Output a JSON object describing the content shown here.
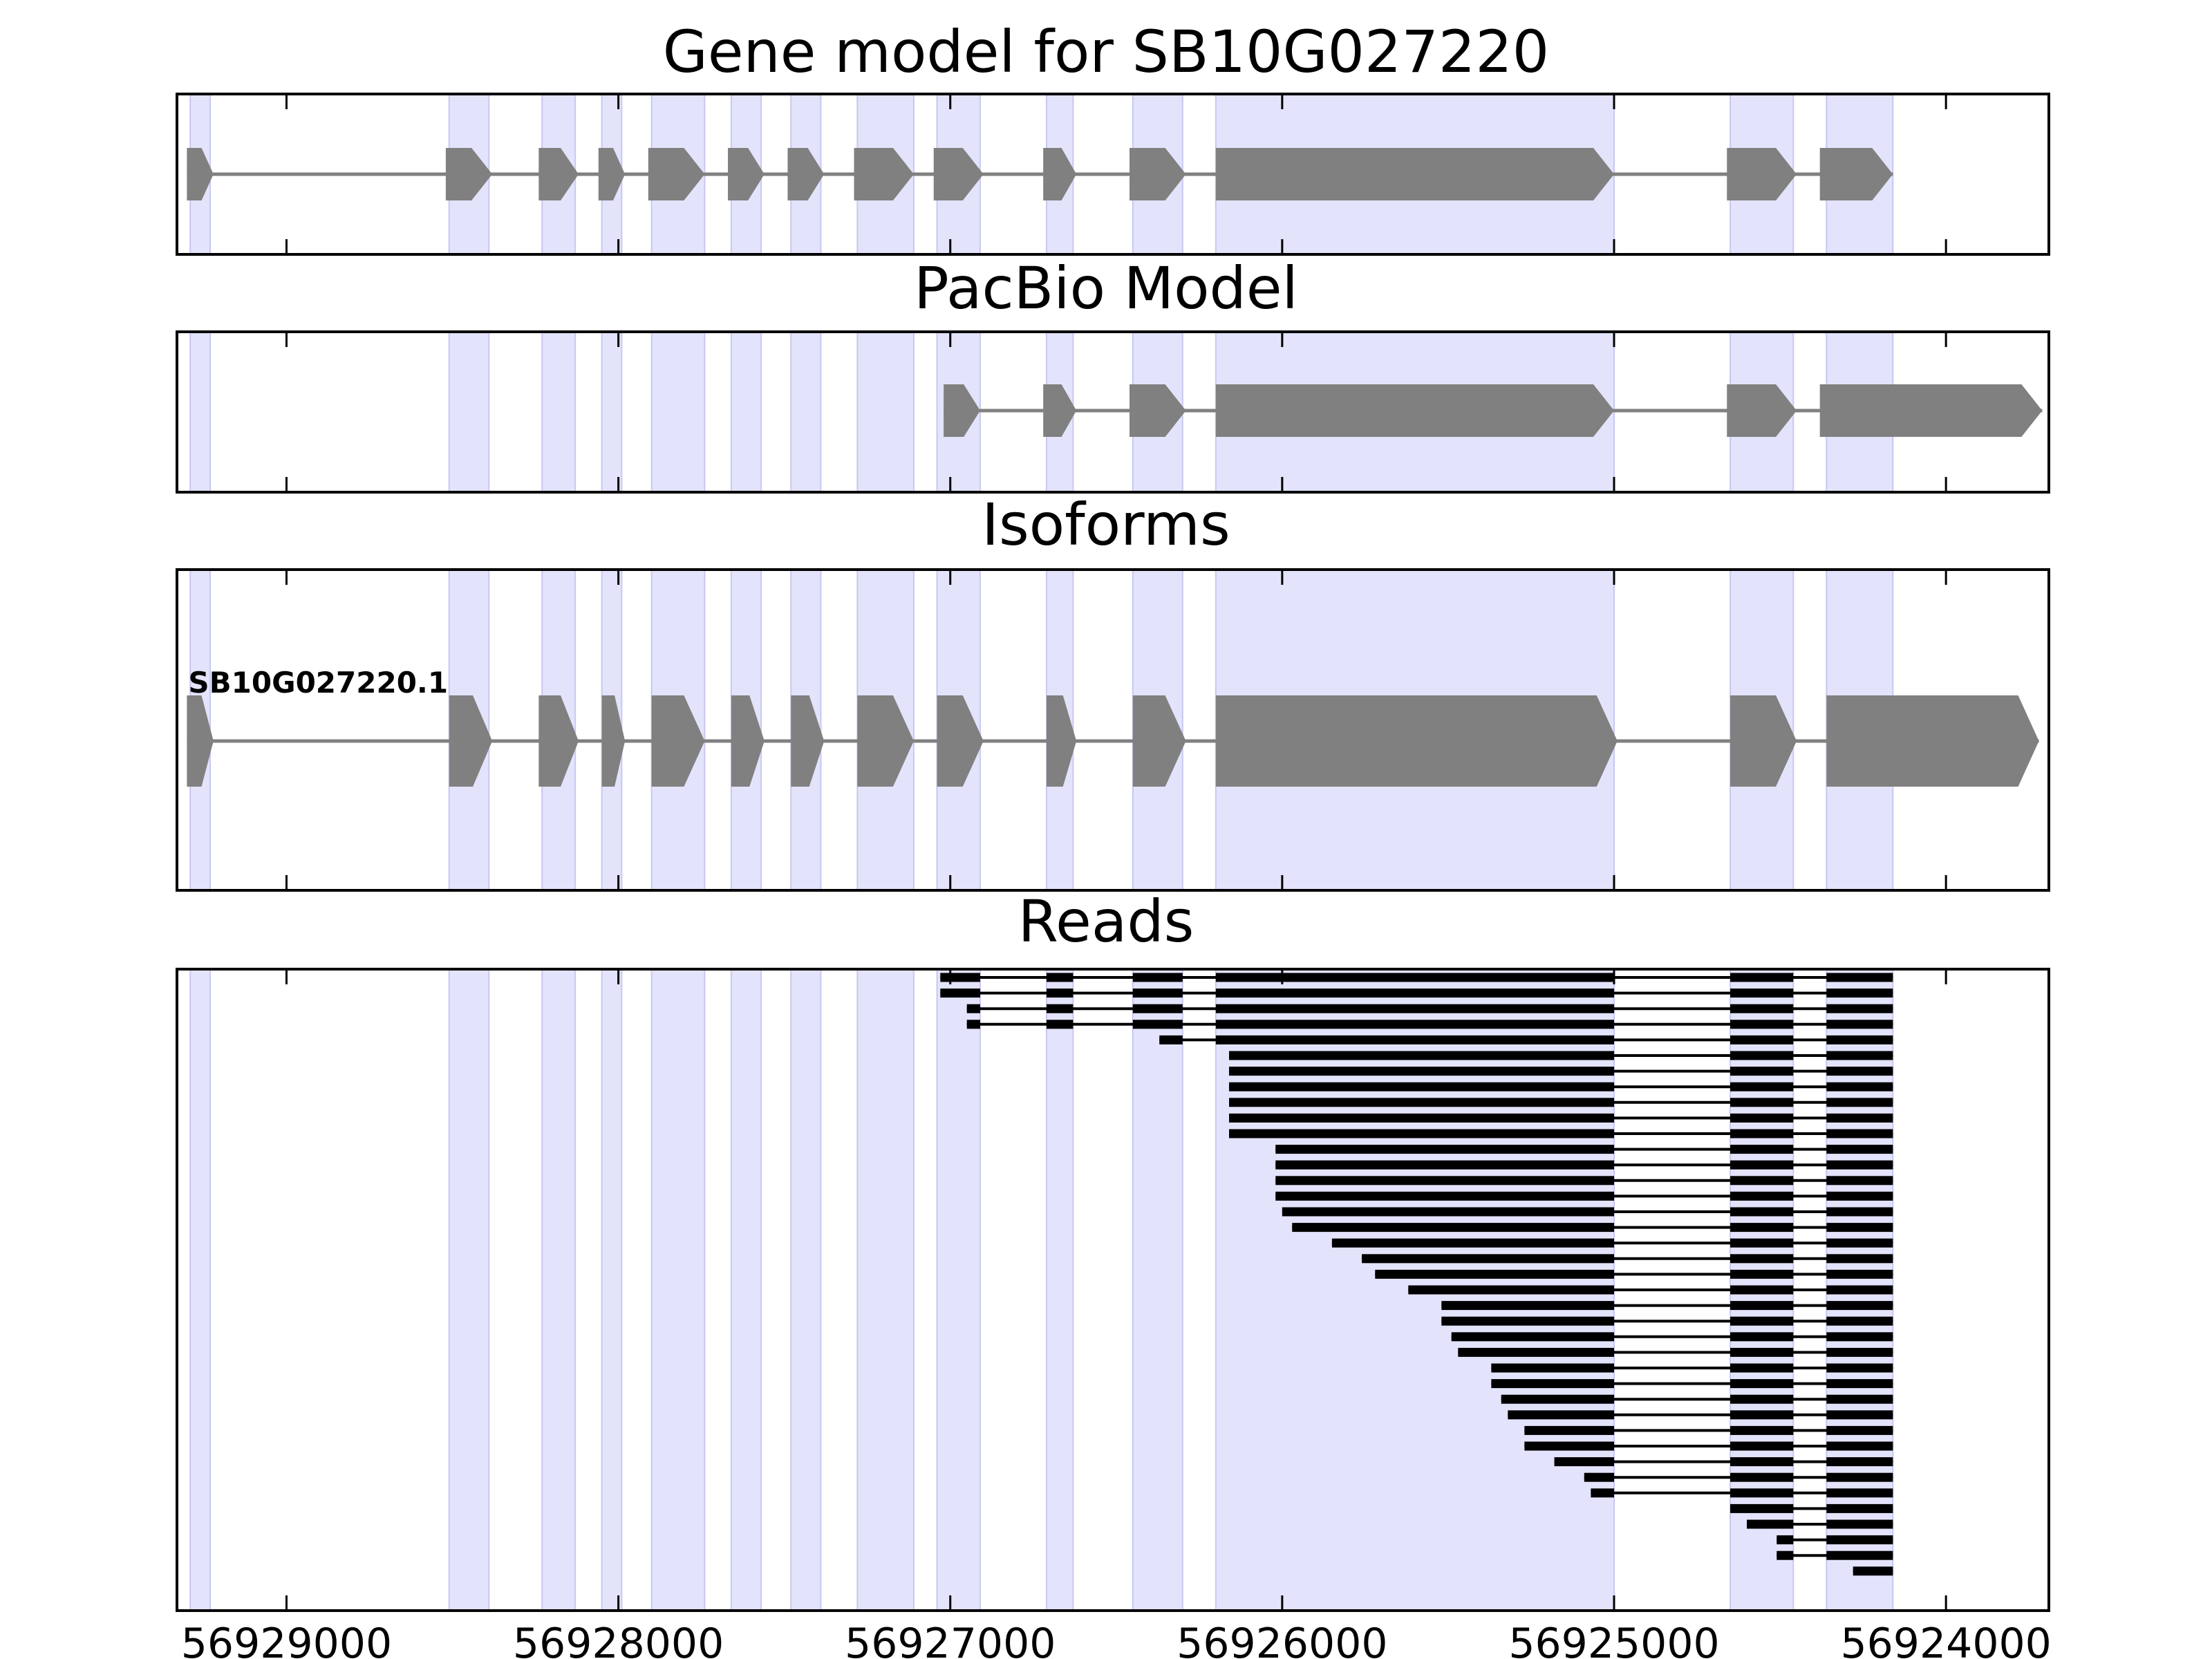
{
  "chart_data": {
    "type": "gene-model",
    "x_ticks": [
      56929000,
      56928000,
      56927000,
      56926000,
      56925000,
      56924000
    ],
    "x_tick_labels": [
      "56929000",
      "56928000",
      "56927000",
      "56926000",
      "56925000",
      "56924000"
    ],
    "xlim": [
      56929330,
      56923690
    ],
    "x_reversed": true,
    "strand": "-",
    "colors": {
      "exon_shade": "#e3e3fc",
      "exon_shade_edge": "#c8c8f0",
      "model_fill": "#808080",
      "intron_line": "#808080",
      "read_color": "#000000",
      "axes": "#000000"
    },
    "exon_regions": [
      [
        56929290,
        56929230
      ],
      [
        56928510,
        56928390
      ],
      [
        56928230,
        56928130
      ],
      [
        56928050,
        56927990
      ],
      [
        56927900,
        56927740
      ],
      [
        56927660,
        56927570
      ],
      [
        56927480,
        56927390
      ],
      [
        56927280,
        56927110
      ],
      [
        56927040,
        56926910
      ],
      [
        56926710,
        56926630
      ],
      [
        56926450,
        56926300
      ],
      [
        56926200,
        56925000
      ],
      [
        56924650,
        56924460
      ],
      [
        56924360,
        56924160
      ]
    ],
    "panels": [
      {
        "title": "Gene model for SB10G027220",
        "exons": [
          [
            56929300,
            56929220
          ],
          [
            56928520,
            56928380
          ],
          [
            56928240,
            56928120
          ],
          [
            56928060,
            56927980
          ],
          [
            56927910,
            56927740
          ],
          [
            56927670,
            56927560
          ],
          [
            56927490,
            56927380
          ],
          [
            56927290,
            56927110
          ],
          [
            56927050,
            56926900
          ],
          [
            56926720,
            56926620
          ],
          [
            56926460,
            56926290
          ],
          [
            56926200,
            56925000
          ],
          [
            56924660,
            56924450
          ],
          [
            56924380,
            56924160
          ]
        ]
      },
      {
        "title": "PacBio Model",
        "exons": [
          [
            56927020,
            56926910
          ],
          [
            56926720,
            56926620
          ],
          [
            56926460,
            56926290
          ],
          [
            56926200,
            56925000
          ],
          [
            56924660,
            56924450
          ],
          [
            56924380,
            56923710
          ]
        ]
      },
      {
        "title": "Isoforms",
        "isoforms": [
          {
            "name": "SB10G027220.1",
            "exons": [
              [
                56929300,
                56929220
              ],
              [
                56928510,
                56928380
              ],
              [
                56928240,
                56928120
              ],
              [
                56928050,
                56927980
              ],
              [
                56927900,
                56927740
              ],
              [
                56927660,
                56927560
              ],
              [
                56927480,
                56927380
              ],
              [
                56927280,
                56927110
              ],
              [
                56927040,
                56926900
              ],
              [
                56926710,
                56926620
              ],
              [
                56926450,
                56926290
              ],
              [
                56926200,
                56924990
              ],
              [
                56924650,
                56924450
              ],
              [
                56924360,
                56923720
              ]
            ]
          }
        ]
      },
      {
        "title": "Reads",
        "reads": [
          {
            "start": 56927030,
            "end": 56923810
          },
          {
            "start": 56927030,
            "end": 56923810
          },
          {
            "start": 56926950,
            "end": 56923820
          },
          {
            "start": 56926950,
            "end": 56923820
          },
          {
            "start": 56926370,
            "end": 56923800
          },
          {
            "start": 56926160,
            "end": 56923790
          },
          {
            "start": 56926160,
            "end": 56923800
          },
          {
            "start": 56926160,
            "end": 56923800
          },
          {
            "start": 56926160,
            "end": 56923800
          },
          {
            "start": 56926160,
            "end": 56923800
          },
          {
            "start": 56926160,
            "end": 56923790
          },
          {
            "start": 56926020,
            "end": 56923800
          },
          {
            "start": 56926020,
            "end": 56923790
          },
          {
            "start": 56926020,
            "end": 56923790
          },
          {
            "start": 56926020,
            "end": 56923790
          },
          {
            "start": 56926000,
            "end": 56923790
          },
          {
            "start": 56925970,
            "end": 56923790
          },
          {
            "start": 56925850,
            "end": 56923790
          },
          {
            "start": 56925760,
            "end": 56923800
          },
          {
            "start": 56925720,
            "end": 56923790
          },
          {
            "start": 56925620,
            "end": 56923810
          },
          {
            "start": 56925520,
            "end": 56923780
          },
          {
            "start": 56925520,
            "end": 56923790
          },
          {
            "start": 56925490,
            "end": 56923810
          },
          {
            "start": 56925470,
            "end": 56923750
          },
          {
            "start": 56925370,
            "end": 56923800
          },
          {
            "start": 56925370,
            "end": 56923790
          },
          {
            "start": 56925340,
            "end": 56923800
          },
          {
            "start": 56925320,
            "end": 56923810
          },
          {
            "start": 56925270,
            "end": 56923830
          },
          {
            "start": 56925270,
            "end": 56923800
          },
          {
            "start": 56925180,
            "end": 56923800
          },
          {
            "start": 56925090,
            "end": 56923800
          },
          {
            "start": 56925070,
            "end": 56923690
          },
          {
            "start": 56924650,
            "end": 56923720
          },
          {
            "start": 56924600,
            "end": 56923800
          },
          {
            "start": 56924510,
            "end": 56923820
          },
          {
            "start": 56924510,
            "end": 56923750
          },
          {
            "start": 56924280,
            "end": 56923800
          },
          {
            "start": 56924160,
            "end": 56923820
          }
        ]
      }
    ]
  }
}
